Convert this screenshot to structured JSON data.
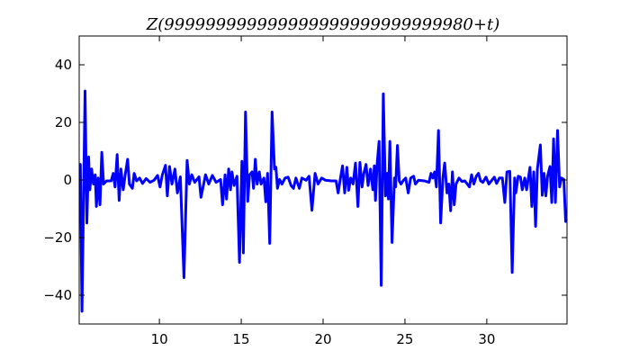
{
  "chart_data": {
    "type": "line",
    "title": "Z(999999999999999999999999999980+t)",
    "xlabel": "",
    "ylabel": "",
    "xlim": [
      5.1,
      34.9
    ],
    "ylim": [
      -50,
      50
    ],
    "xticks": [
      10,
      15,
      20,
      25,
      30
    ],
    "yticks": [
      -40,
      -20,
      0,
      20,
      40
    ],
    "xtick_labels": [
      "10",
      "15",
      "20",
      "25",
      "30"
    ],
    "ytick_labels": [
      "−40",
      "−20",
      "0",
      "20",
      "40"
    ],
    "grid": false,
    "line_color": "#0000ff",
    "series": [
      {
        "points": [
          [
            5.12,
            4.0
          ],
          [
            5.17,
            5.4
          ],
          [
            5.27,
            -45.6
          ],
          [
            5.46,
            30.9
          ],
          [
            5.57,
            -14.9
          ],
          [
            5.68,
            8.0
          ],
          [
            5.75,
            -3.4
          ],
          [
            5.86,
            3.8
          ],
          [
            5.97,
            -1.4
          ],
          [
            6.08,
            1.8
          ],
          [
            6.15,
            -9.2
          ],
          [
            6.26,
            0.7
          ],
          [
            6.37,
            -8.6
          ],
          [
            6.48,
            9.6
          ],
          [
            6.59,
            -1.4
          ],
          [
            6.77,
            -0.3
          ],
          [
            7.05,
            -0.3
          ],
          [
            7.18,
            2.3
          ],
          [
            7.29,
            -2.4
          ],
          [
            7.42,
            8.8
          ],
          [
            7.54,
            -7.1
          ],
          [
            7.65,
            3.8
          ],
          [
            7.79,
            -3.4
          ],
          [
            7.91,
            1.8
          ],
          [
            8.06,
            7.2
          ],
          [
            8.17,
            -1.4
          ],
          [
            8.35,
            -2.9
          ],
          [
            8.46,
            2.3
          ],
          [
            8.61,
            -0.3
          ],
          [
            8.79,
            0.7
          ],
          [
            8.97,
            -1.2
          ],
          [
            9.19,
            0.5
          ],
          [
            9.43,
            -0.8
          ],
          [
            9.67,
            -0.1
          ],
          [
            9.89,
            1.6
          ],
          [
            10.04,
            -2.4
          ],
          [
            10.18,
            1.8
          ],
          [
            10.37,
            5.1
          ],
          [
            10.48,
            -5.5
          ],
          [
            10.62,
            4.7
          ],
          [
            10.77,
            -1.4
          ],
          [
            10.95,
            3.8
          ],
          [
            11.1,
            -4.5
          ],
          [
            11.28,
            1.1
          ],
          [
            11.5,
            -33.9
          ],
          [
            11.69,
            6.8
          ],
          [
            11.83,
            -1.4
          ],
          [
            11.98,
            1.8
          ],
          [
            12.16,
            -0.8
          ],
          [
            12.42,
            1.1
          ],
          [
            12.54,
            -6.0
          ],
          [
            12.82,
            1.8
          ],
          [
            13.01,
            -1.4
          ],
          [
            13.24,
            1.6
          ],
          [
            13.46,
            -0.8
          ],
          [
            13.74,
            0.2
          ],
          [
            13.86,
            -8.6
          ],
          [
            14.01,
            1.8
          ],
          [
            14.1,
            -6.6
          ],
          [
            14.23,
            3.8
          ],
          [
            14.34,
            -3.4
          ],
          [
            14.43,
            2.8
          ],
          [
            14.56,
            -1.9
          ],
          [
            14.74,
            1.3
          ],
          [
            14.89,
            -28.6
          ],
          [
            15.04,
            6.5
          ],
          [
            15.13,
            -25.3
          ],
          [
            15.26,
            23.6
          ],
          [
            15.4,
            -7.4
          ],
          [
            15.51,
            1.8
          ],
          [
            15.66,
            2.8
          ],
          [
            15.75,
            -2.9
          ],
          [
            15.86,
            7.2
          ],
          [
            15.97,
            -1.4
          ],
          [
            16.1,
            2.8
          ],
          [
            16.21,
            -1.4
          ],
          [
            16.39,
            0.7
          ],
          [
            16.5,
            -7.6
          ],
          [
            16.61,
            2.3
          ],
          [
            16.74,
            -22.0
          ],
          [
            16.88,
            23.6
          ],
          [
            17.03,
            3.8
          ],
          [
            17.12,
            4.4
          ],
          [
            17.21,
            -2.9
          ],
          [
            17.34,
            0.2
          ],
          [
            17.49,
            -1.4
          ],
          [
            17.68,
            0.7
          ],
          [
            17.86,
            1.0
          ],
          [
            18.04,
            -1.9
          ],
          [
            18.19,
            -2.9
          ],
          [
            18.34,
            0.7
          ],
          [
            18.55,
            -2.9
          ],
          [
            18.7,
            0.7
          ],
          [
            18.96,
            -0.1
          ],
          [
            19.14,
            1.3
          ],
          [
            19.32,
            -10.5
          ],
          [
            19.51,
            2.3
          ],
          [
            19.69,
            -1.4
          ],
          [
            19.91,
            0.7
          ],
          [
            20.15,
            -0.1
          ],
          [
            20.51,
            -0.3
          ],
          [
            20.79,
            -0.3
          ],
          [
            20.92,
            -4.5
          ],
          [
            21.06,
            0.7
          ],
          [
            21.19,
            4.9
          ],
          [
            21.32,
            -4.5
          ],
          [
            21.45,
            4.4
          ],
          [
            21.56,
            -3.6
          ],
          [
            21.69,
            0.7
          ],
          [
            21.83,
            -1.4
          ],
          [
            21.98,
            5.9
          ],
          [
            22.13,
            -9.2
          ],
          [
            22.25,
            6.1
          ],
          [
            22.38,
            -2.4
          ],
          [
            22.49,
            2.3
          ],
          [
            22.62,
            5.4
          ],
          [
            22.75,
            -1.9
          ],
          [
            22.9,
            3.8
          ],
          [
            23.04,
            -3.4
          ],
          [
            23.13,
            4.9
          ],
          [
            23.2,
            -7.1
          ],
          [
            23.3,
            5.4
          ],
          [
            23.42,
            13.4
          ],
          [
            23.55,
            -36.6
          ],
          [
            23.68,
            29.9
          ],
          [
            23.81,
            -5.5
          ],
          [
            23.92,
            2.3
          ],
          [
            23.99,
            -6.6
          ],
          [
            24.08,
            13.4
          ],
          [
            24.21,
            -21.7
          ],
          [
            24.36,
            0.7
          ],
          [
            24.43,
            -2.4
          ],
          [
            24.54,
            12.0
          ],
          [
            24.65,
            -0.3
          ],
          [
            24.76,
            -1.4
          ],
          [
            24.91,
            -0.1
          ],
          [
            25.05,
            0.7
          ],
          [
            25.2,
            -4.5
          ],
          [
            25.35,
            0.7
          ],
          [
            25.53,
            1.3
          ],
          [
            25.64,
            -1.4
          ],
          [
            25.82,
            -0.1
          ],
          [
            26.19,
            -0.3
          ],
          [
            26.47,
            -0.8
          ],
          [
            26.59,
            2.3
          ],
          [
            26.7,
            0.7
          ],
          [
            26.81,
            2.8
          ],
          [
            26.92,
            -2.4
          ],
          [
            27.05,
            17.2
          ],
          [
            27.18,
            -14.9
          ],
          [
            27.32,
            0.7
          ],
          [
            27.43,
            5.9
          ],
          [
            27.57,
            -4.5
          ],
          [
            27.68,
            -1.4
          ],
          [
            27.79,
            -10.7
          ],
          [
            27.9,
            2.8
          ],
          [
            28.01,
            -8.6
          ],
          [
            28.12,
            -1.4
          ],
          [
            28.3,
            0.7
          ],
          [
            28.48,
            -0.5
          ],
          [
            28.66,
            -0.3
          ],
          [
            28.81,
            -1.4
          ],
          [
            28.94,
            -2.4
          ],
          [
            29.07,
            1.8
          ],
          [
            29.21,
            -1.4
          ],
          [
            29.36,
            1.3
          ],
          [
            29.49,
            2.3
          ],
          [
            29.62,
            -0.3
          ],
          [
            29.76,
            -0.8
          ],
          [
            29.95,
            1.0
          ],
          [
            30.13,
            -1.4
          ],
          [
            30.31,
            -0.1
          ],
          [
            30.46,
            1.0
          ],
          [
            30.6,
            -1.2
          ],
          [
            30.77,
            0.7
          ],
          [
            30.95,
            0.7
          ],
          [
            31.1,
            -7.8
          ],
          [
            31.23,
            2.8
          ],
          [
            31.41,
            3.0
          ],
          [
            31.55,
            -32.1
          ],
          [
            31.7,
            0.7
          ],
          [
            31.77,
            -4.5
          ],
          [
            31.92,
            1.3
          ],
          [
            32.06,
            1.0
          ],
          [
            32.17,
            -3.4
          ],
          [
            32.32,
            0.7
          ],
          [
            32.43,
            -3.4
          ],
          [
            32.54,
            0.7
          ],
          [
            32.64,
            4.4
          ],
          [
            32.75,
            -9.2
          ],
          [
            32.87,
            2.8
          ],
          [
            32.98,
            -16.1
          ],
          [
            33.09,
            3.8
          ],
          [
            33.27,
            12.2
          ],
          [
            33.39,
            -5.3
          ],
          [
            33.5,
            2.3
          ],
          [
            33.61,
            -5.5
          ],
          [
            33.71,
            1.3
          ],
          [
            33.86,
            4.7
          ],
          [
            33.97,
            -7.8
          ],
          [
            34.08,
            14.3
          ],
          [
            34.19,
            -7.8
          ],
          [
            34.32,
            17.2
          ],
          [
            34.45,
            -2.4
          ],
          [
            34.56,
            0.7
          ],
          [
            34.71,
            0.2
          ],
          [
            34.82,
            -14.4
          ],
          [
            34.9,
            -13.5
          ]
        ]
      }
    ]
  }
}
